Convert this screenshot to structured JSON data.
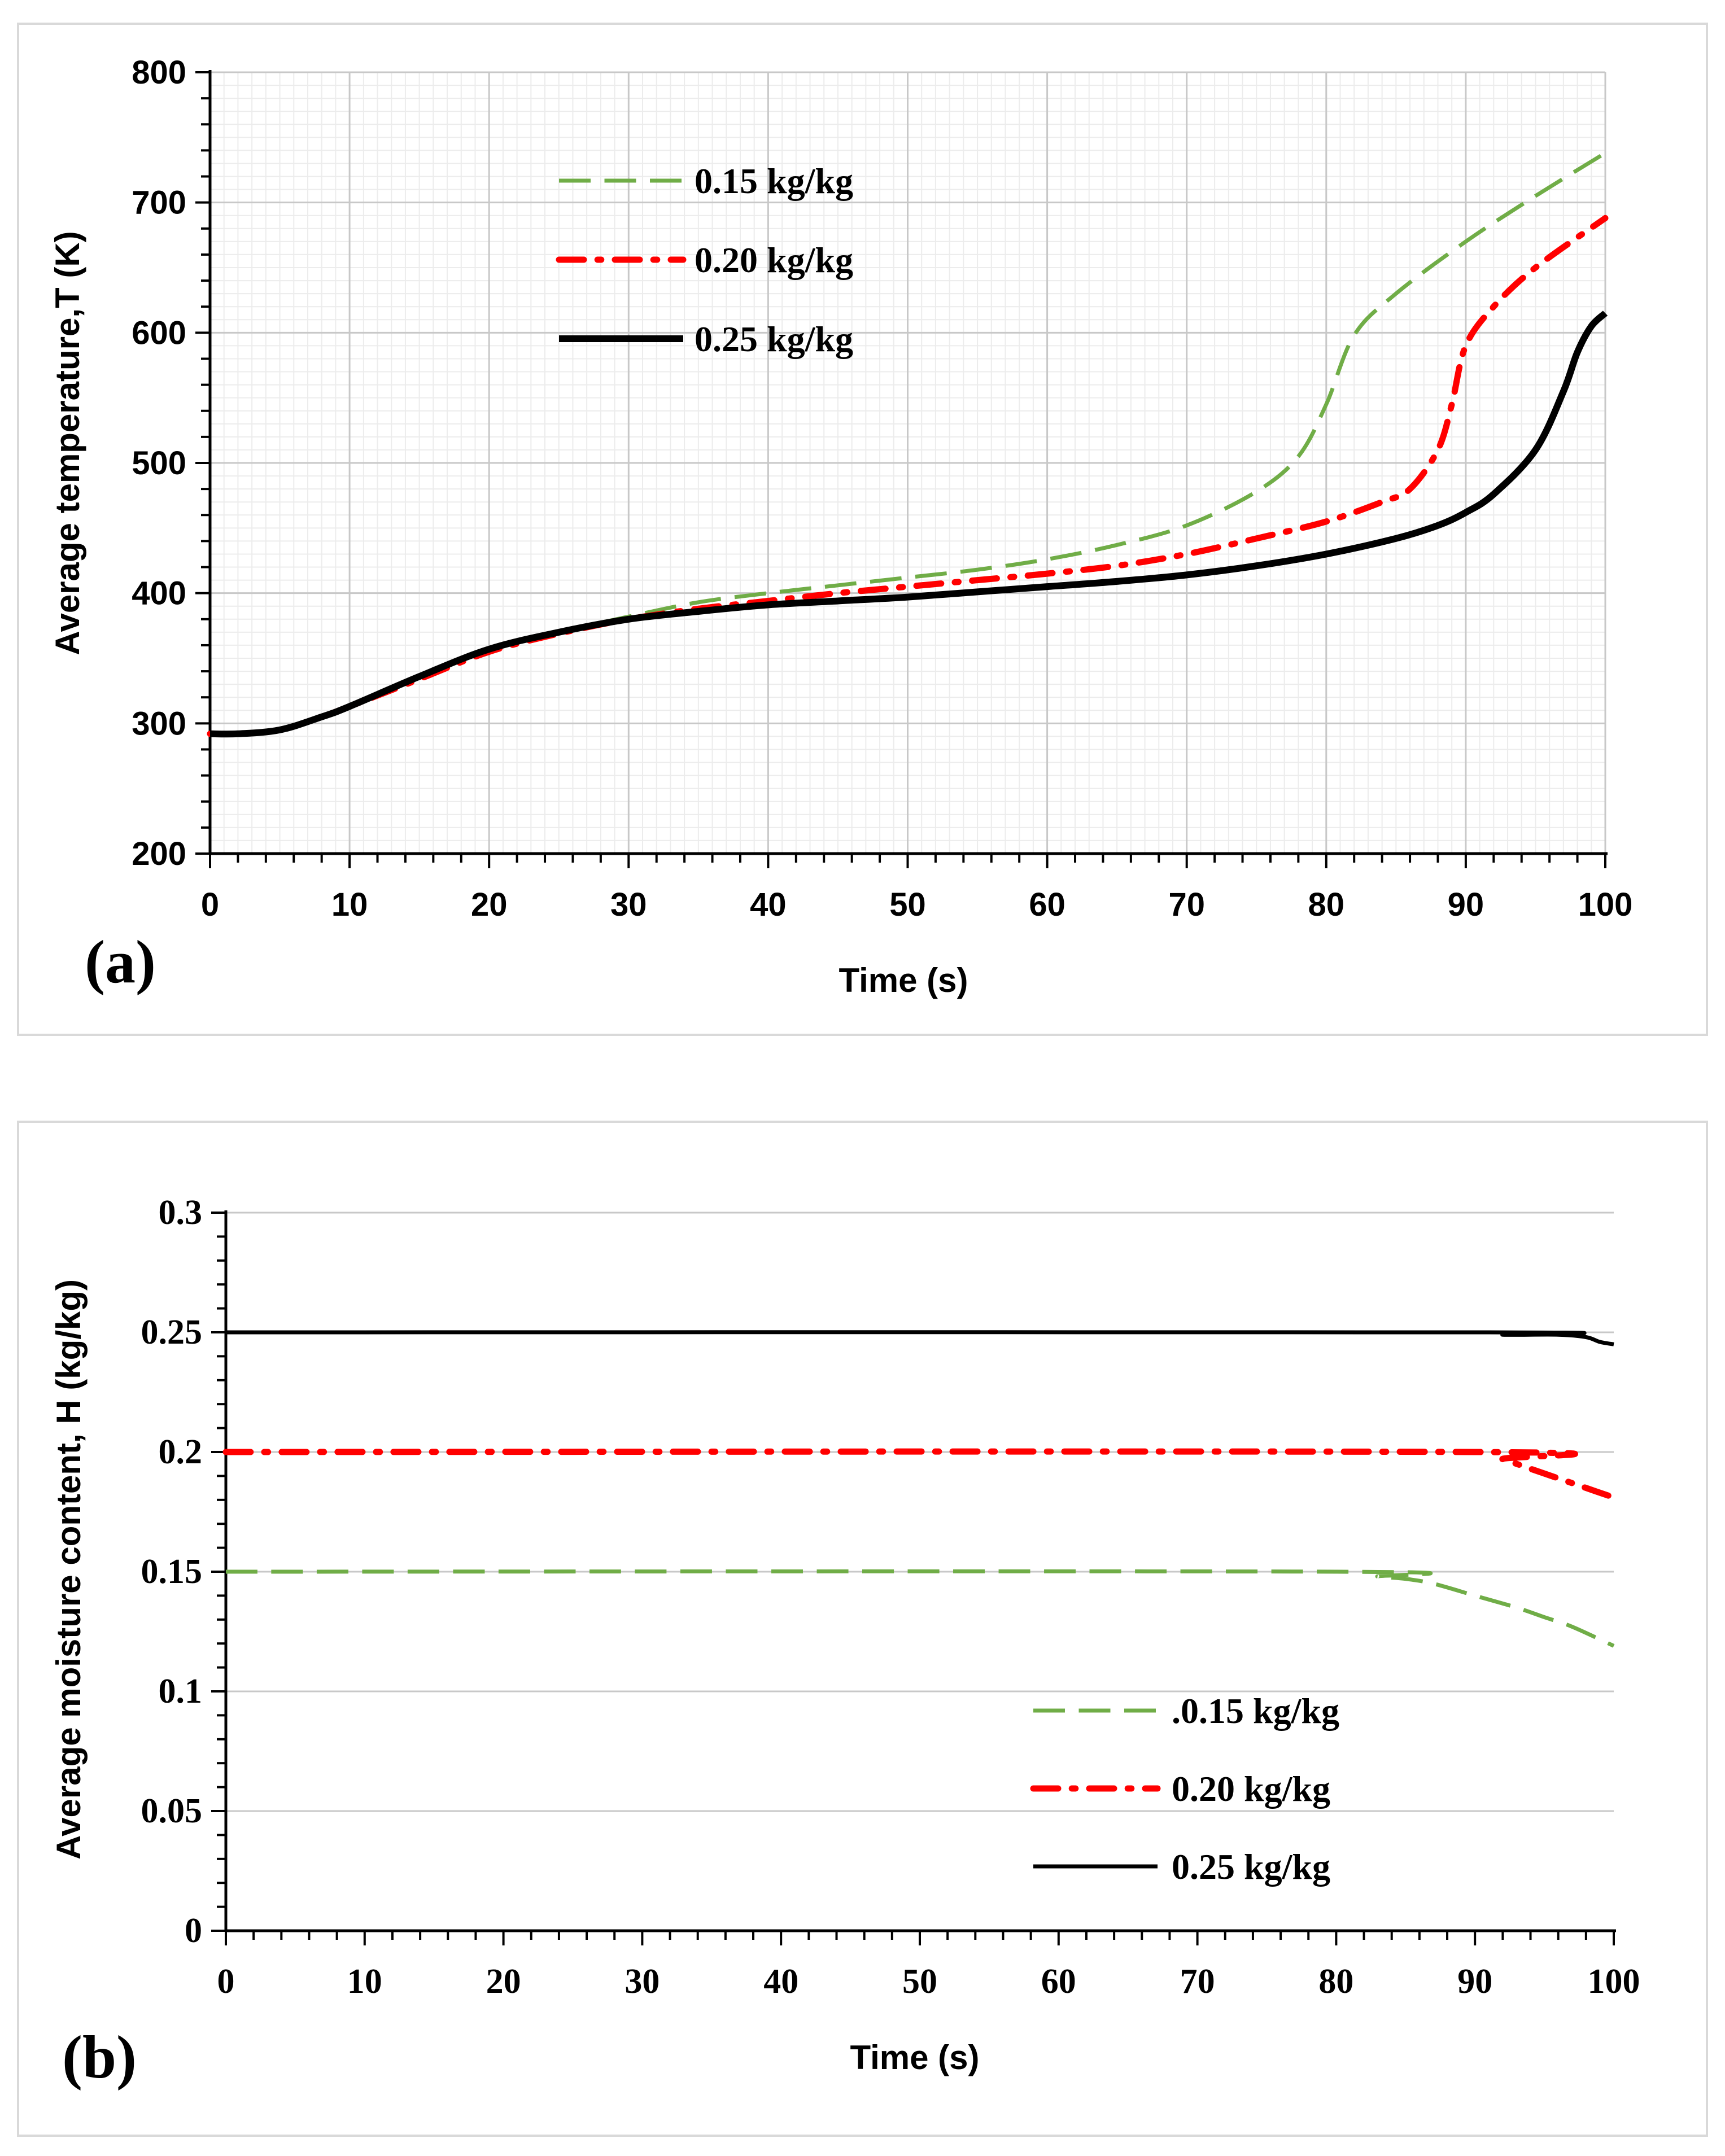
{
  "chart_data": [
    {
      "type": "line",
      "panel_label": "(a)",
      "xlabel": "Time (s)",
      "ylabel": "Average temperature,T (K)",
      "xlim": [
        0,
        100
      ],
      "ylim": [
        200,
        800
      ],
      "x_ticks": [
        "0",
        "10",
        "20",
        "30",
        "40",
        "50",
        "60",
        "70",
        "80",
        "90",
        "100"
      ],
      "y_ticks": [
        "200",
        "300",
        "400",
        "500",
        "600",
        "700",
        "800"
      ],
      "grid": true,
      "legend_position": "top-center",
      "series": [
        {
          "name": "0.15  kg/kg",
          "color": "#70ad47",
          "style": "dashed",
          "x": [
            0,
            2,
            5,
            8,
            10,
            15,
            20,
            25,
            30,
            35,
            40,
            45,
            50,
            55,
            60,
            65,
            70,
            75,
            78,
            80,
            82,
            85,
            90,
            95,
            100
          ],
          "y": [
            292,
            292,
            295,
            305,
            313,
            335,
            356,
            370,
            382,
            393,
            400,
            406,
            412,
            418,
            426,
            437,
            452,
            478,
            505,
            545,
            598,
            630,
            670,
            705,
            738
          ]
        },
        {
          "name": "0.20 kg/kg",
          "color": "#ff0000",
          "style": "dashdot",
          "x": [
            0,
            2,
            5,
            8,
            10,
            15,
            20,
            25,
            30,
            35,
            40,
            45,
            50,
            55,
            60,
            65,
            70,
            75,
            80,
            84,
            86,
            88,
            89,
            90,
            92,
            95,
            100
          ],
          "y": [
            292,
            292,
            295,
            305,
            313,
            334,
            355,
            369,
            380,
            388,
            394,
            400,
            405,
            410,
            415,
            421,
            430,
            442,
            455,
            470,
            480,
            510,
            545,
            590,
            620,
            650,
            688
          ]
        },
        {
          "name": "0.25 kg/kg",
          "color": "#000000",
          "style": "solid",
          "x": [
            0,
            2,
            5,
            8,
            10,
            15,
            20,
            25,
            30,
            35,
            40,
            45,
            50,
            55,
            60,
            65,
            70,
            75,
            80,
            85,
            88,
            90,
            92,
            95,
            97,
            98,
            99,
            100
          ],
          "y": [
            292,
            292,
            295,
            305,
            313,
            336,
            357,
            370,
            380,
            386,
            391,
            394,
            397,
            401,
            405,
            409,
            414,
            421,
            430,
            442,
            452,
            462,
            476,
            510,
            555,
            585,
            605,
            615
          ]
        }
      ]
    },
    {
      "type": "line",
      "panel_label": "(b)",
      "xlabel": "Time (s)",
      "ylabel": "Average moisture content, H (kg/kg)",
      "xlim": [
        0,
        100
      ],
      "ylim": [
        0,
        0.3
      ],
      "x_ticks": [
        "0",
        "10",
        "20",
        "30",
        "40",
        "50",
        "60",
        "70",
        "80",
        "90",
        "100"
      ],
      "y_ticks": [
        "0",
        "0.05",
        "0.1",
        "0.15",
        "0.2",
        "0.25",
        "0.3"
      ],
      "grid": true,
      "legend_position": "bottom-right",
      "series": [
        {
          "name": ".0.15 kg/kg",
          "color": "#70ad47",
          "style": "dashed",
          "x": [
            0,
            80,
            83,
            85,
            87,
            90,
            93,
            95,
            97,
            100
          ],
          "y": [
            0.15,
            0.15,
            0.148,
            0.147,
            0.145,
            0.14,
            0.135,
            0.131,
            0.127,
            0.119
          ]
        },
        {
          "name": "0.20 kg/kg",
          "color": "#ff0000",
          "style": "dashdot",
          "x": [
            0,
            90,
            92,
            94,
            96,
            98,
            100
          ],
          "y": [
            0.2,
            0.2,
            0.197,
            0.193,
            0.189,
            0.185,
            0.181
          ]
        },
        {
          "name": "0.25 kg/kg",
          "color": "#000000",
          "style": "solid",
          "x": [
            0,
            91,
            92,
            96,
            98,
            99,
            100
          ],
          "y": [
            0.25,
            0.25,
            0.249,
            0.249,
            0.248,
            0.246,
            0.245
          ]
        }
      ]
    }
  ]
}
